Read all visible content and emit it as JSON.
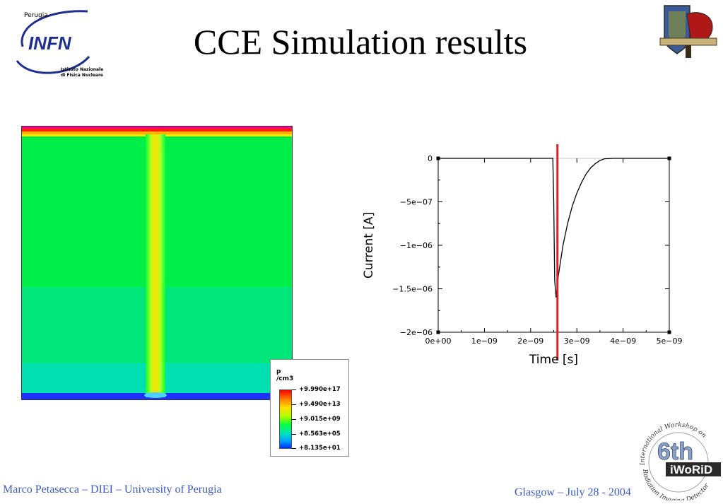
{
  "header": {
    "title": "CCE Simulation results",
    "infn_logo": {
      "city": "Perugia",
      "name": "INFN",
      "line1": "Istituto Nazionale",
      "line2": "di Fisica Nucleare"
    },
    "right_logo_icon": "crest-logo-icon"
  },
  "simulation_map": {
    "legend": {
      "unit_line1": "p",
      "unit_line2": "/cm3",
      "values": [
        "+9.990e+17",
        "+9.490e+13",
        "+9.015e+09",
        "+8.563e+05",
        "+8.135e+01"
      ]
    }
  },
  "chart_data": {
    "type": "line",
    "xlabel": "Time [s]",
    "ylabel": "Current [A]",
    "xlim": [
      0,
      5e-09
    ],
    "ylim": [
      -2e-06,
      0
    ],
    "x_ticks": [
      0,
      1e-09,
      2e-09,
      3e-09,
      4e-09,
      5e-09
    ],
    "x_tick_labels": [
      "0e+00",
      "1e−09",
      "2e−09",
      "3e−09",
      "4e−09",
      "5e−09"
    ],
    "y_ticks": [
      0,
      -5e-07,
      -1e-06,
      -1.5e-06,
      -2e-06
    ],
    "y_tick_labels": [
      "0",
      "−5e−07",
      "−1e−06",
      "−1.5e−06",
      "−2e−06"
    ],
    "grid": false,
    "series": [
      {
        "x": [
          0,
          2.48e-09,
          2.5e-09,
          2.52e-09,
          2.55e-09,
          2.6e-09,
          2.7e-09,
          2.8e-09,
          2.9e-09,
          3e-09,
          3.1e-09,
          3.2e-09,
          3.3e-09,
          3.4e-09,
          3.5e-09,
          3.6e-09,
          3.8e-09,
          5e-09
        ],
        "y": [
          0,
          0,
          -5e-07,
          -1.4e-06,
          -1.6e-06,
          -1.35e-06,
          -1e-06,
          -7.5e-07,
          -5.5e-07,
          -4e-07,
          -2.8e-07,
          -1.8e-07,
          -1.1e-07,
          -6e-08,
          -2.5e-08,
          -5e-09,
          0,
          0
        ],
        "color": "#000000"
      }
    ],
    "annotations": [
      {
        "type": "vertical-line",
        "x": 2.58e-09,
        "color": "#e02020"
      }
    ]
  },
  "footer": {
    "left": "Marco Petasecca – DIEI – University of Perugia",
    "right": "Glasgow – July 28 - 2004"
  },
  "iworid_logo": {
    "number": "6th",
    "name": "iWoRiD",
    "arc_top": "International Workshop on",
    "arc_bottom": "Radiation Imaging Detectors"
  }
}
